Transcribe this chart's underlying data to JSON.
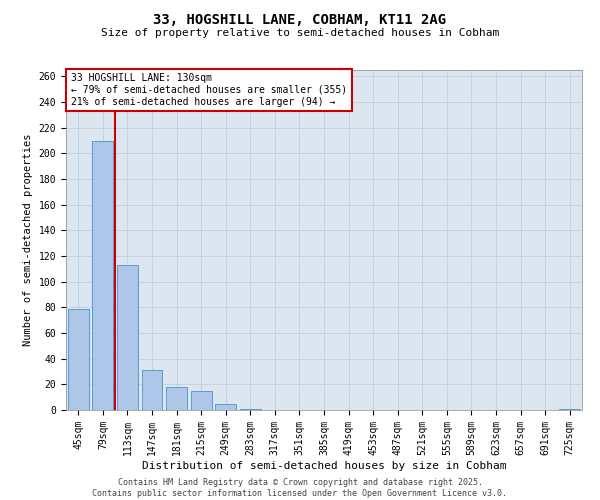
{
  "title_line1": "33, HOGSHILL LANE, COBHAM, KT11 2AG",
  "title_line2": "Size of property relative to semi-detached houses in Cobham",
  "xlabel": "Distribution of semi-detached houses by size in Cobham",
  "ylabel": "Number of semi-detached properties",
  "categories": [
    "45sqm",
    "79sqm",
    "113sqm",
    "147sqm",
    "181sqm",
    "215sqm",
    "249sqm",
    "283sqm",
    "317sqm",
    "351sqm",
    "385sqm",
    "419sqm",
    "453sqm",
    "487sqm",
    "521sqm",
    "555sqm",
    "589sqm",
    "623sqm",
    "657sqm",
    "691sqm",
    "725sqm"
  ],
  "values": [
    79,
    210,
    113,
    31,
    18,
    15,
    5,
    1,
    0,
    0,
    0,
    0,
    0,
    0,
    0,
    0,
    0,
    0,
    0,
    0,
    1
  ],
  "bar_color": "#aec6e8",
  "bar_edge_color": "#5b9bd5",
  "grid_color": "#c0c8d8",
  "background_color": "#dce6f1",
  "vline_color": "#cc0000",
  "annotation_text": "33 HOGSHILL LANE: 130sqm\n← 79% of semi-detached houses are smaller (355)\n21% of semi-detached houses are larger (94) →",
  "annotation_box_color": "#cc0000",
  "footer_text": "Contains HM Land Registry data © Crown copyright and database right 2025.\nContains public sector information licensed under the Open Government Licence v3.0.",
  "ylim": [
    0,
    265
  ],
  "yticks": [
    0,
    20,
    40,
    60,
    80,
    100,
    120,
    140,
    160,
    180,
    200,
    220,
    240,
    260
  ],
  "vline_bin_index": 2,
  "title1_fontsize": 10,
  "title2_fontsize": 8,
  "xlabel_fontsize": 8,
  "ylabel_fontsize": 7.5,
  "tick_fontsize": 7,
  "annotation_fontsize": 7,
  "footer_fontsize": 6
}
